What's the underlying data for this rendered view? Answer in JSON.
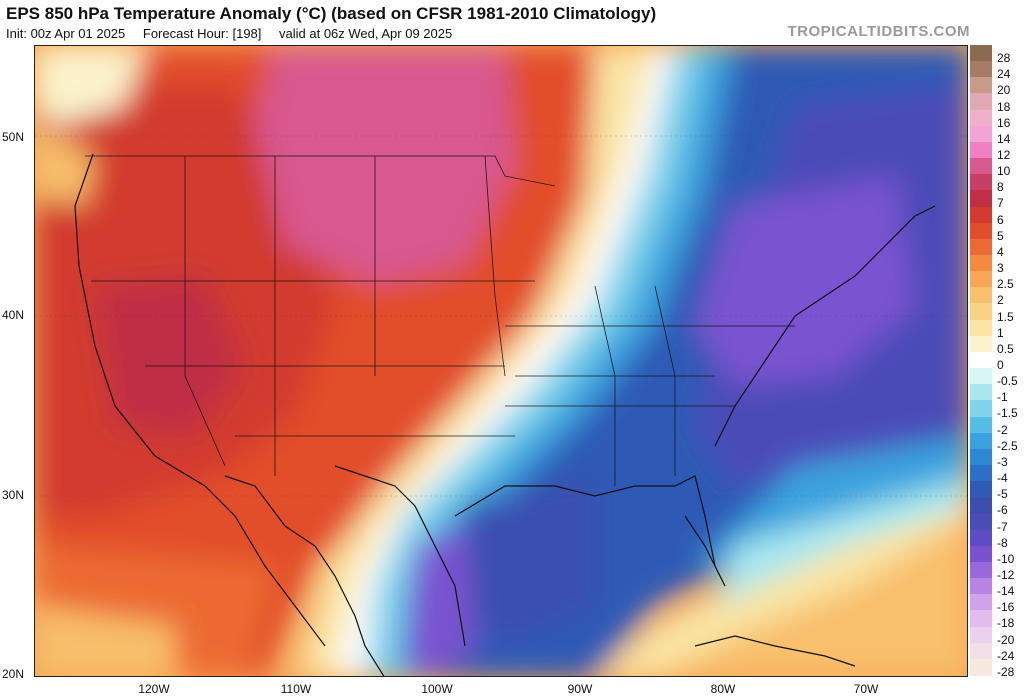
{
  "title": "EPS 850 hPa Temperature Anomaly (°C) (based on CFSR 1981-2010 Climatology)",
  "subtitle": {
    "init": "Init: 00z Apr 01 2025",
    "forecast_hour": "Forecast Hour: [198]",
    "valid": "valid at 06z Wed, Apr 09 2025"
  },
  "brand": "TROPICALTIDBITS.COM",
  "lat_labels": [
    "50N",
    "40N",
    "30N",
    "20N"
  ],
  "lon_labels": [
    "120W",
    "110W",
    "100W",
    "90W",
    "80W",
    "70W"
  ],
  "colorbar": [
    {
      "label": "28",
      "color": "#8b6a4f"
    },
    {
      "label": "24",
      "color": "#a67c64"
    },
    {
      "label": "20",
      "color": "#c99a8a"
    },
    {
      "label": "18",
      "color": "#e0a9b4"
    },
    {
      "label": "16",
      "color": "#f0b0cc"
    },
    {
      "label": "14",
      "color": "#f4a3d6"
    },
    {
      "label": "12",
      "color": "#f080c4"
    },
    {
      "label": "10",
      "color": "#d8598f"
    },
    {
      "label": "8",
      "color": "#c73f64"
    },
    {
      "label": "7",
      "color": "#c02f45"
    },
    {
      "label": "6",
      "color": "#d23b2f"
    },
    {
      "label": "5",
      "color": "#e24e2c"
    },
    {
      "label": "4",
      "color": "#ec6a33"
    },
    {
      "label": "3",
      "color": "#f38a42"
    },
    {
      "label": "2.5",
      "color": "#f6a656"
    },
    {
      "label": "2",
      "color": "#f8bf6c"
    },
    {
      "label": "1.5",
      "color": "#f9d486"
    },
    {
      "label": "1",
      "color": "#fae5a4"
    },
    {
      "label": "0.5",
      "color": "#fbf3cc"
    },
    {
      "label": "0",
      "color": "#ffffff"
    },
    {
      "label": "-0.5",
      "color": "#d8f6f6"
    },
    {
      "label": "-1",
      "color": "#a9e8ef"
    },
    {
      "label": "-1.5",
      "color": "#7fd4ea"
    },
    {
      "label": "-2",
      "color": "#55bde6"
    },
    {
      "label": "-2.5",
      "color": "#3aa3df"
    },
    {
      "label": "-3",
      "color": "#2f88d4"
    },
    {
      "label": "-4",
      "color": "#2b70c6"
    },
    {
      "label": "-5",
      "color": "#2f5ab6"
    },
    {
      "label": "-6",
      "color": "#3a4fb0"
    },
    {
      "label": "-7",
      "color": "#4b4cb8"
    },
    {
      "label": "-8",
      "color": "#5f4cc4"
    },
    {
      "label": "-10",
      "color": "#7a52d0"
    },
    {
      "label": "-12",
      "color": "#9a68dc"
    },
    {
      "label": "-14",
      "color": "#b884e4"
    },
    {
      "label": "-16",
      "color": "#d0a2ea"
    },
    {
      "label": "-18",
      "color": "#e1bcec"
    },
    {
      "label": "-20",
      "color": "#ecd0ee"
    },
    {
      "label": "-24",
      "color": "#f3dfe8"
    },
    {
      "label": "-28",
      "color": "#f7e8e0"
    }
  ]
}
